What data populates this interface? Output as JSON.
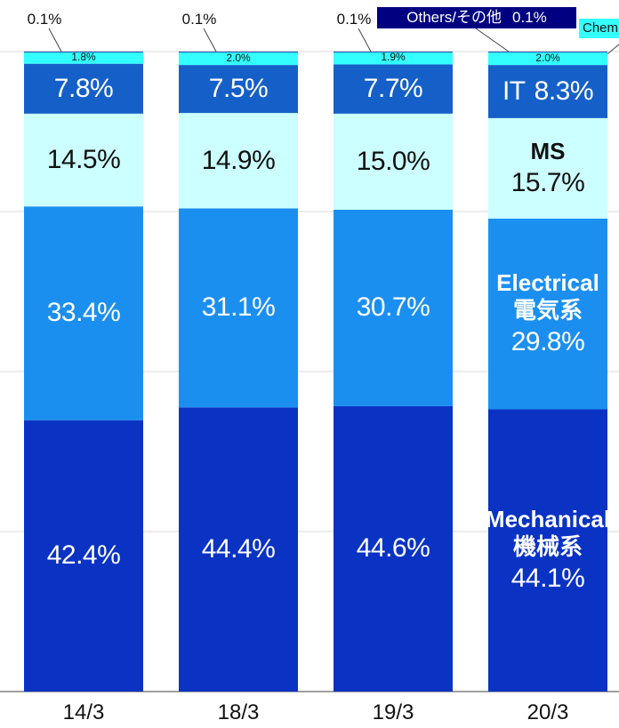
{
  "chart_data": {
    "type": "stacked_bar",
    "categories": [
      "14/3",
      "18/3",
      "19/3",
      "20/3"
    ],
    "ylim": [
      0,
      100
    ],
    "yticks": [
      0,
      25,
      50,
      75,
      100
    ],
    "grid": true,
    "series": [
      {
        "name": "Mechanical\n機械系",
        "color": "#0a33c4",
        "text_color": "#ffffff",
        "values": [
          42.4,
          44.4,
          44.6,
          44.1
        ],
        "value_labels": [
          "42.4%",
          "44.4%",
          "44.6%",
          "44.1%"
        ]
      },
      {
        "name": "Electrical\n電気系",
        "color": "#1b8ff0",
        "text_color": "#ffffff",
        "values": [
          33.4,
          31.1,
          30.7,
          29.8
        ],
        "value_labels": [
          "33.4%",
          "31.1%",
          "30.7%",
          "29.8%"
        ]
      },
      {
        "name": "MS",
        "color": "#ccffff",
        "text_color": "#111111",
        "values": [
          14.5,
          14.9,
          15.0,
          15.7
        ],
        "value_labels": [
          "14.5%",
          "14.9%",
          "15.0%",
          "15.7%"
        ]
      },
      {
        "name": "IT",
        "color": "#1560c8",
        "text_color": "#ffffff",
        "values": [
          7.8,
          7.5,
          7.7,
          8.3
        ],
        "value_labels": [
          "7.8%",
          "7.5%",
          "7.7%",
          "8.3%"
        ]
      },
      {
        "name": "Chem",
        "color": "#33ffff",
        "text_color": "#111111",
        "values": [
          1.8,
          2.0,
          1.9,
          2.0
        ],
        "value_labels": [
          "1.8%",
          "2.0%",
          "1.9%",
          "2.0%"
        ]
      },
      {
        "name": "Others/その他",
        "color": "#000080",
        "text_color": "#ffffff",
        "values": [
          0.1,
          0.1,
          0.1,
          0.1
        ],
        "value_labels": [
          "0.1%",
          "0.1%",
          "0.1%",
          "0.1%"
        ]
      }
    ]
  }
}
